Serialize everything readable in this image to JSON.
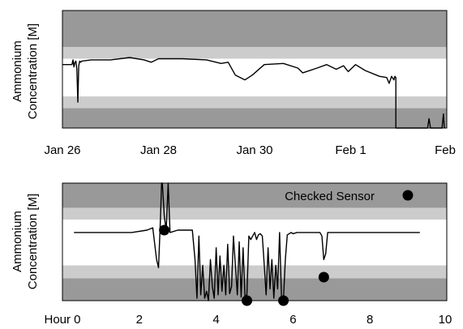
{
  "chart_data": [
    {
      "type": "line",
      "title": "",
      "ylabel_line1": "Ammonium",
      "ylabel_line2": "Concentration [M]",
      "xlabel": "",
      "x_ticks": [
        "Jan 26",
        "Jan 28",
        "Jan 30",
        "Feb 1",
        "Feb"
      ],
      "x_tick_days": [
        0,
        2,
        4,
        6,
        8
      ],
      "xlim_days": [
        0,
        8
      ],
      "ylim": [
        0,
        1
      ],
      "bands": [
        {
          "y0": 0.0,
          "y1": 0.17,
          "color": "#999999"
        },
        {
          "y0": 0.17,
          "y1": 0.27,
          "color": "#cccccc"
        },
        {
          "y0": 0.27,
          "y1": 0.59,
          "color": "#ffffff"
        },
        {
          "y0": 0.59,
          "y1": 0.69,
          "color": "#cccccc"
        },
        {
          "y0": 0.69,
          "y1": 1.0,
          "color": "#999999"
        }
      ],
      "series": [
        {
          "name": "",
          "x": [
            0.0,
            0.2,
            0.22,
            0.24,
            0.26,
            0.28,
            0.3,
            0.32,
            0.34,
            0.36,
            0.38,
            0.4,
            0.6,
            1.0,
            1.4,
            1.7,
            1.85,
            2.0,
            2.5,
            3.0,
            3.2,
            3.3,
            3.45,
            3.6,
            3.8,
            3.95,
            4.2,
            4.6,
            4.9,
            5.0,
            5.3,
            5.5,
            5.7,
            5.85,
            5.95,
            6.1,
            6.3,
            6.6,
            6.75,
            6.8,
            6.85,
            6.9,
            6.92,
            6.94,
            6.94,
            7.0,
            7.05,
            7.05,
            7.07,
            7.09,
            7.6,
            7.63,
            7.66,
            7.9,
            7.93,
            7.95
          ],
          "y": [
            0.54,
            0.54,
            0.58,
            0.52,
            0.56,
            0.57,
            0.5,
            0.22,
            0.53,
            0.57,
            0.56,
            0.57,
            0.58,
            0.58,
            0.6,
            0.58,
            0.56,
            0.59,
            0.59,
            0.58,
            0.56,
            0.55,
            0.56,
            0.45,
            0.41,
            0.45,
            0.54,
            0.55,
            0.51,
            0.47,
            0.51,
            0.54,
            0.5,
            0.53,
            0.48,
            0.54,
            0.49,
            0.44,
            0.43,
            0.38,
            0.44,
            0.41,
            0.44,
            0.43,
            0.0,
            0.0,
            0.0,
            0.0,
            0.0,
            0.0,
            0.0,
            0.08,
            0.0,
            0.0,
            0.12,
            0.0
          ]
        }
      ]
    },
    {
      "type": "line",
      "title": "",
      "ylabel_line1": "Ammonium",
      "ylabel_line2": "Concentration [M]",
      "xlabel": "",
      "x_ticks": [
        "Hour 0",
        "2",
        "4",
        "6",
        "8",
        "10"
      ],
      "x_tick_values": [
        0,
        2,
        4,
        6,
        8,
        10
      ],
      "xlim": [
        0,
        10
      ],
      "ylim": [
        0,
        1
      ],
      "bands": [
        {
          "y0": 0.0,
          "y1": 0.19,
          "color": "#999999"
        },
        {
          "y0": 0.19,
          "y1": 0.3,
          "color": "#cccccc"
        },
        {
          "y0": 0.3,
          "y1": 0.69,
          "color": "#ffffff"
        },
        {
          "y0": 0.69,
          "y1": 0.79,
          "color": "#cccccc"
        },
        {
          "y0": 0.79,
          "y1": 1.0,
          "color": "#999999"
        }
      ],
      "legend": {
        "label": "Checked Sensor",
        "position": "top-right"
      },
      "series": [
        {
          "name": "",
          "x": [
            0.3,
            1.0,
            1.8,
            2.2,
            2.35,
            2.45,
            2.5,
            2.55,
            2.58,
            2.6,
            2.65,
            2.7,
            2.75,
            2.8,
            3.0,
            3.2,
            3.38,
            3.45,
            3.5,
            3.55,
            3.6,
            3.65,
            3.7,
            3.75,
            3.8,
            3.85,
            3.9,
            3.95,
            4.0,
            4.05,
            4.1,
            4.15,
            4.2,
            4.25,
            4.3,
            4.35,
            4.4,
            4.45,
            4.5,
            4.55,
            4.6,
            4.65,
            4.7,
            4.75,
            4.8,
            4.85,
            4.9,
            4.95,
            5.0,
            5.05,
            5.1,
            5.15,
            5.2,
            5.25,
            5.3,
            5.35,
            5.4,
            5.45,
            5.5,
            5.55,
            5.6,
            5.65,
            5.7,
            5.75,
            5.8,
            5.85,
            5.9,
            5.95,
            6.0,
            6.1,
            6.3,
            6.5,
            6.7,
            6.75,
            6.8,
            6.85,
            6.9,
            7.1,
            7.5,
            8.0,
            8.5,
            9.0,
            9.3
          ],
          "y": [
            0.58,
            0.58,
            0.58,
            0.6,
            0.62,
            0.35,
            0.28,
            0.7,
            1.0,
            1.0,
            0.72,
            0.6,
            1.0,
            0.58,
            0.6,
            0.6,
            0.6,
            0.35,
            0.02,
            0.55,
            0.05,
            0.3,
            0.02,
            0.08,
            0.0,
            0.35,
            0.12,
            0.02,
            0.45,
            0.05,
            0.38,
            0.08,
            0.3,
            0.05,
            0.48,
            0.06,
            0.12,
            0.55,
            0.3,
            0.05,
            0.5,
            0.03,
            0.45,
            0.04,
            0.05,
            0.55,
            0.52,
            0.55,
            0.58,
            0.52,
            0.56,
            0.57,
            0.55,
            0.3,
            0.05,
            0.45,
            0.1,
            0.35,
            0.02,
            0.3,
            0.1,
            0.58,
            0.02,
            0.0,
            0.35,
            0.56,
            0.57,
            0.58,
            0.57,
            0.58,
            0.58,
            0.58,
            0.58,
            0.55,
            0.35,
            0.4,
            0.58,
            0.58,
            0.58,
            0.58,
            0.58,
            0.58,
            0.58
          ]
        }
      ],
      "checked_points": {
        "x": [
          2.65,
          4.8,
          5.75,
          6.8
        ],
        "y": [
          0.6,
          0.0,
          0.0,
          0.2
        ]
      }
    }
  ]
}
